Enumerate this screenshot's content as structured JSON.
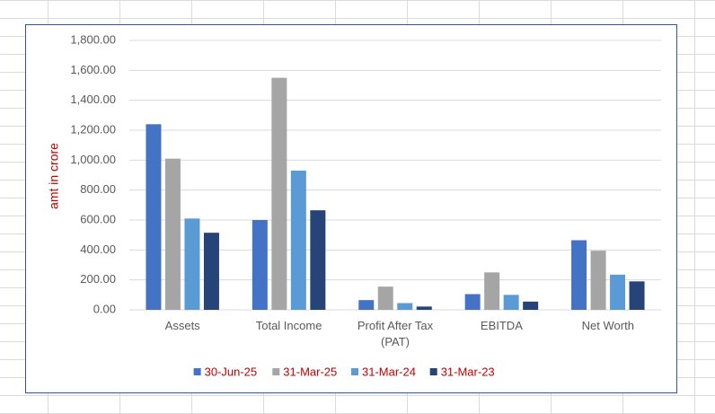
{
  "chart_data": {
    "type": "bar",
    "y_axis_label": "amt in crore",
    "categories": [
      "Assets",
      "Total Income",
      "Profit After Tax (PAT)",
      "EBITDA",
      "Net Worth"
    ],
    "series": [
      {
        "name": "30-Jun-25",
        "color": "#4472c4",
        "values": [
          1240,
          600,
          65,
          105,
          465
        ]
      },
      {
        "name": "31-Mar-25",
        "color": "#a5a5a5",
        "values": [
          1010,
          1550,
          155,
          250,
          395
        ]
      },
      {
        "name": "31-Mar-24",
        "color": "#5b9bd5",
        "values": [
          610,
          930,
          45,
          100,
          235
        ]
      },
      {
        "name": "31-Mar-23",
        "color": "#264478",
        "values": [
          515,
          665,
          22,
          55,
          190
        ]
      }
    ],
    "ylim": [
      0,
      1800
    ],
    "yticks": [
      {
        "value": 0,
        "label": "0.00"
      },
      {
        "value": 200,
        "label": "200.00"
      },
      {
        "value": 400,
        "label": "400.00"
      },
      {
        "value": 600,
        "label": "600.00"
      },
      {
        "value": 800,
        "label": "800.00"
      },
      {
        "value": 1000,
        "label": "1,000.00"
      },
      {
        "value": 1200,
        "label": "1,200.00"
      },
      {
        "value": 1400,
        "label": "1,400.00"
      },
      {
        "value": 1600,
        "label": "1,600.00"
      },
      {
        "value": 1800,
        "label": "1,800.00"
      }
    ],
    "grid": true,
    "legend": "bottom"
  }
}
